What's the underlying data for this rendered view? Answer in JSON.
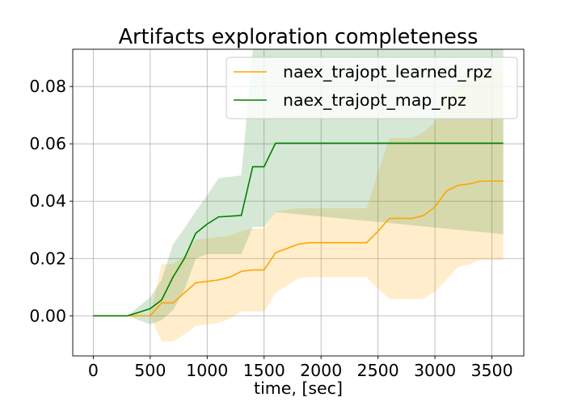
{
  "chart_data": {
    "type": "line",
    "title": "Artifacts exploration completeness",
    "xlabel": "time, [sec]",
    "ylabel": "",
    "xlim": [
      -180,
      3780
    ],
    "ylim": [
      -0.014,
      0.093
    ],
    "xticks": [
      0,
      500,
      1000,
      1500,
      2000,
      2500,
      3000,
      3500
    ],
    "yticks": [
      0.0,
      0.02,
      0.04,
      0.06,
      0.08
    ],
    "ytick_labels": [
      "0.00",
      "0.02",
      "0.04",
      "0.06",
      "0.08"
    ],
    "grid": true,
    "legend_position": "top-right",
    "series": [
      {
        "name": "naex_trajopt_learned_rpz",
        "color": "#ffa500",
        "band_color": "#ffa500",
        "x": [
          0,
          300,
          500,
          600,
          700,
          800,
          900,
          1000,
          1100,
          1200,
          1300,
          1400,
          1500,
          1600,
          1700,
          1800,
          1900,
          2000,
          2400,
          2500,
          2600,
          2800,
          2900,
          3000,
          3100,
          3200,
          3300,
          3400,
          3600
        ],
        "y": [
          0.0,
          0.0,
          0.0,
          0.0045,
          0.0045,
          0.008,
          0.0115,
          0.012,
          0.0125,
          0.0135,
          0.0155,
          0.016,
          0.016,
          0.022,
          0.0235,
          0.025,
          0.0255,
          0.0255,
          0.0255,
          0.0295,
          0.034,
          0.034,
          0.035,
          0.038,
          0.0435,
          0.0455,
          0.046,
          0.047,
          0.047
        ],
        "upper": [
          0.0,
          0.0,
          0.0,
          0.018,
          0.018,
          0.021,
          0.0265,
          0.027,
          0.0275,
          0.028,
          0.0295,
          0.0305,
          0.0305,
          0.0365,
          0.037,
          0.0375,
          0.0375,
          0.0375,
          0.0375,
          0.05,
          0.062,
          0.062,
          0.064,
          0.0675,
          0.075,
          0.081,
          0.0835,
          0.085,
          0.085
        ],
        "lower": [
          0.0,
          0.0,
          0.0,
          -0.009,
          -0.009,
          -0.0065,
          -0.0035,
          -0.003,
          -0.0025,
          -0.001,
          0.0015,
          0.0015,
          0.0015,
          0.008,
          0.0105,
          0.013,
          0.0135,
          0.0135,
          0.0135,
          0.0095,
          0.0058,
          0.0058,
          0.006,
          0.0085,
          0.0125,
          0.017,
          0.018,
          0.0195,
          0.0195
        ]
      },
      {
        "name": "naex_trajopt_map_rpz",
        "color": "#008000",
        "band_color": "#2e8b2e",
        "x": [
          0,
          300,
          400,
          500,
          600,
          700,
          800,
          900,
          1000,
          1100,
          1300,
          1400,
          1500,
          1600,
          3600
        ],
        "y": [
          0.0,
          0.0,
          0.0012,
          0.0025,
          0.0055,
          0.0135,
          0.02,
          0.0288,
          0.032,
          0.0345,
          0.035,
          0.052,
          0.052,
          0.0602,
          0.0602
        ],
        "upper": [
          0.0,
          0.0,
          0.0032,
          0.0065,
          0.0125,
          0.025,
          0.0305,
          0.0365,
          0.042,
          0.048,
          0.049,
          0.093,
          0.093,
          0.093,
          0.093
        ],
        "lower": [
          0.0,
          0.0,
          -0.0015,
          -0.003,
          -0.0015,
          0.002,
          0.009,
          0.02,
          0.0215,
          0.0215,
          0.0215,
          0.031,
          0.031,
          0.0362,
          0.0285
        ]
      }
    ]
  }
}
